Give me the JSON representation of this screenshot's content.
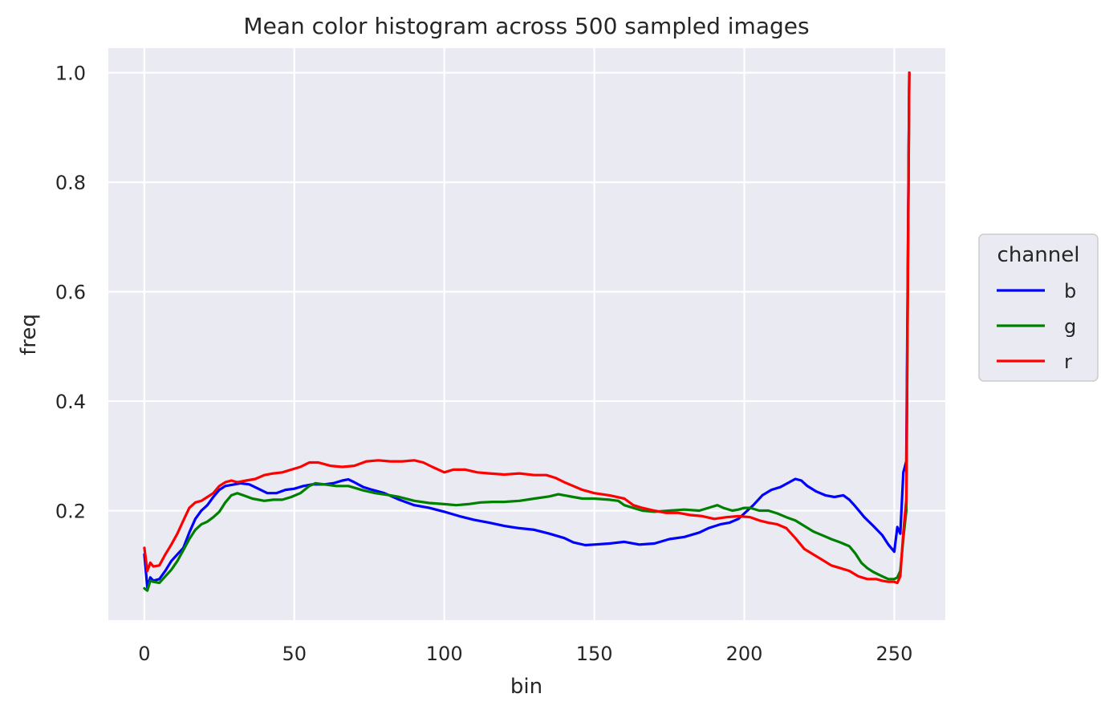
{
  "chart_data": {
    "type": "line",
    "title": "Mean color histogram across 500 sampled images",
    "xlabel": "bin",
    "ylabel": "freq",
    "xlim": [
      -12,
      267
    ],
    "ylim": [
      0.0,
      1.045
    ],
    "xticks": [
      0,
      50,
      100,
      150,
      200,
      250
    ],
    "yticks": [
      0.2,
      0.4,
      0.6,
      0.8,
      1.0
    ],
    "xtick_labels": [
      "0",
      "50",
      "100",
      "150",
      "200",
      "250"
    ],
    "ytick_labels": [
      "0.2",
      "0.4",
      "0.6",
      "0.8",
      "1.0"
    ],
    "grid": true,
    "background": "#eaeaf2",
    "legend": {
      "title": "channel",
      "placement": "right"
    },
    "series": [
      {
        "name": "b",
        "color": "#0000ff",
        "points": [
          [
            0,
            0.12
          ],
          [
            1,
            0.06
          ],
          [
            2,
            0.078
          ],
          [
            3,
            0.072
          ],
          [
            5,
            0.075
          ],
          [
            7,
            0.09
          ],
          [
            9,
            0.108
          ],
          [
            11,
            0.12
          ],
          [
            13,
            0.132
          ],
          [
            15,
            0.16
          ],
          [
            17,
            0.185
          ],
          [
            19,
            0.2
          ],
          [
            21,
            0.21
          ],
          [
            23,
            0.225
          ],
          [
            25,
            0.238
          ],
          [
            27,
            0.245
          ],
          [
            30,
            0.248
          ],
          [
            32,
            0.25
          ],
          [
            35,
            0.248
          ],
          [
            38,
            0.24
          ],
          [
            41,
            0.232
          ],
          [
            44,
            0.232
          ],
          [
            47,
            0.238
          ],
          [
            50,
            0.24
          ],
          [
            53,
            0.245
          ],
          [
            56,
            0.248
          ],
          [
            60,
            0.248
          ],
          [
            63,
            0.25
          ],
          [
            66,
            0.255
          ],
          [
            68,
            0.257
          ],
          [
            70,
            0.252
          ],
          [
            73,
            0.243
          ],
          [
            76,
            0.238
          ],
          [
            80,
            0.232
          ],
          [
            85,
            0.22
          ],
          [
            90,
            0.21
          ],
          [
            95,
            0.205
          ],
          [
            100,
            0.198
          ],
          [
            105,
            0.19
          ],
          [
            110,
            0.183
          ],
          [
            115,
            0.178
          ],
          [
            120,
            0.172
          ],
          [
            125,
            0.168
          ],
          [
            130,
            0.165
          ],
          [
            135,
            0.158
          ],
          [
            140,
            0.15
          ],
          [
            143,
            0.142
          ],
          [
            147,
            0.137
          ],
          [
            150,
            0.138
          ],
          [
            155,
            0.14
          ],
          [
            160,
            0.143
          ],
          [
            165,
            0.138
          ],
          [
            170,
            0.14
          ],
          [
            175,
            0.148
          ],
          [
            180,
            0.152
          ],
          [
            185,
            0.16
          ],
          [
            188,
            0.168
          ],
          [
            192,
            0.175
          ],
          [
            195,
            0.178
          ],
          [
            198,
            0.185
          ],
          [
            200,
            0.195
          ],
          [
            203,
            0.21
          ],
          [
            206,
            0.228
          ],
          [
            209,
            0.238
          ],
          [
            212,
            0.243
          ],
          [
            215,
            0.252
          ],
          [
            217,
            0.258
          ],
          [
            219,
            0.255
          ],
          [
            221,
            0.245
          ],
          [
            224,
            0.235
          ],
          [
            227,
            0.228
          ],
          [
            230,
            0.225
          ],
          [
            233,
            0.228
          ],
          [
            235,
            0.22
          ],
          [
            237,
            0.208
          ],
          [
            240,
            0.188
          ],
          [
            243,
            0.172
          ],
          [
            246,
            0.155
          ],
          [
            248,
            0.138
          ],
          [
            250,
            0.125
          ],
          [
            251,
            0.17
          ],
          [
            252,
            0.158
          ],
          [
            253,
            0.27
          ],
          [
            254,
            0.29
          ],
          [
            255,
            1.0
          ]
        ]
      },
      {
        "name": "g",
        "color": "#008000",
        "points": [
          [
            0,
            0.058
          ],
          [
            1,
            0.054
          ],
          [
            2,
            0.072
          ],
          [
            3,
            0.07
          ],
          [
            5,
            0.068
          ],
          [
            7,
            0.08
          ],
          [
            9,
            0.092
          ],
          [
            11,
            0.108
          ],
          [
            13,
            0.128
          ],
          [
            15,
            0.148
          ],
          [
            17,
            0.165
          ],
          [
            19,
            0.175
          ],
          [
            21,
            0.18
          ],
          [
            23,
            0.188
          ],
          [
            25,
            0.198
          ],
          [
            27,
            0.215
          ],
          [
            29,
            0.228
          ],
          [
            31,
            0.232
          ],
          [
            33,
            0.228
          ],
          [
            36,
            0.222
          ],
          [
            40,
            0.218
          ],
          [
            43,
            0.22
          ],
          [
            46,
            0.22
          ],
          [
            49,
            0.225
          ],
          [
            52,
            0.232
          ],
          [
            55,
            0.245
          ],
          [
            57,
            0.25
          ],
          [
            60,
            0.248
          ],
          [
            64,
            0.245
          ],
          [
            68,
            0.245
          ],
          [
            70,
            0.242
          ],
          [
            73,
            0.237
          ],
          [
            77,
            0.232
          ],
          [
            82,
            0.228
          ],
          [
            85,
            0.225
          ],
          [
            90,
            0.218
          ],
          [
            95,
            0.214
          ],
          [
            100,
            0.212
          ],
          [
            104,
            0.21
          ],
          [
            108,
            0.212
          ],
          [
            112,
            0.215
          ],
          [
            116,
            0.216
          ],
          [
            120,
            0.216
          ],
          [
            125,
            0.218
          ],
          [
            130,
            0.222
          ],
          [
            135,
            0.226
          ],
          [
            138,
            0.23
          ],
          [
            140,
            0.228
          ],
          [
            143,
            0.225
          ],
          [
            146,
            0.222
          ],
          [
            150,
            0.222
          ],
          [
            155,
            0.22
          ],
          [
            158,
            0.218
          ],
          [
            160,
            0.21
          ],
          [
            163,
            0.205
          ],
          [
            166,
            0.2
          ],
          [
            170,
            0.198
          ],
          [
            175,
            0.2
          ],
          [
            180,
            0.202
          ],
          [
            185,
            0.2
          ],
          [
            188,
            0.205
          ],
          [
            191,
            0.21
          ],
          [
            193,
            0.205
          ],
          [
            196,
            0.2
          ],
          [
            198,
            0.202
          ],
          [
            200,
            0.205
          ],
          [
            202,
            0.205
          ],
          [
            205,
            0.2
          ],
          [
            208,
            0.2
          ],
          [
            211,
            0.195
          ],
          [
            214,
            0.188
          ],
          [
            217,
            0.182
          ],
          [
            220,
            0.172
          ],
          [
            223,
            0.162
          ],
          [
            226,
            0.155
          ],
          [
            229,
            0.148
          ],
          [
            232,
            0.142
          ],
          [
            235,
            0.135
          ],
          [
            237,
            0.122
          ],
          [
            239,
            0.105
          ],
          [
            241,
            0.095
          ],
          [
            243,
            0.088
          ],
          [
            246,
            0.08
          ],
          [
            248,
            0.075
          ],
          [
            250,
            0.075
          ],
          [
            251,
            0.078
          ],
          [
            252,
            0.09
          ],
          [
            253,
            0.15
          ],
          [
            254,
            0.2
          ],
          [
            255,
            1.0
          ]
        ]
      },
      {
        "name": "r",
        "color": "#ff0000",
        "points": [
          [
            0,
            0.132
          ],
          [
            1,
            0.09
          ],
          [
            2,
            0.105
          ],
          [
            3,
            0.098
          ],
          [
            5,
            0.1
          ],
          [
            7,
            0.12
          ],
          [
            9,
            0.138
          ],
          [
            11,
            0.158
          ],
          [
            13,
            0.182
          ],
          [
            15,
            0.205
          ],
          [
            17,
            0.215
          ],
          [
            19,
            0.218
          ],
          [
            21,
            0.225
          ],
          [
            23,
            0.232
          ],
          [
            25,
            0.245
          ],
          [
            27,
            0.252
          ],
          [
            29,
            0.255
          ],
          [
            31,
            0.252
          ],
          [
            34,
            0.255
          ],
          [
            37,
            0.258
          ],
          [
            40,
            0.265
          ],
          [
            43,
            0.268
          ],
          [
            46,
            0.27
          ],
          [
            49,
            0.275
          ],
          [
            52,
            0.28
          ],
          [
            55,
            0.288
          ],
          [
            58,
            0.288
          ],
          [
            62,
            0.282
          ],
          [
            66,
            0.28
          ],
          [
            70,
            0.282
          ],
          [
            74,
            0.29
          ],
          [
            78,
            0.292
          ],
          [
            82,
            0.29
          ],
          [
            86,
            0.29
          ],
          [
            90,
            0.292
          ],
          [
            93,
            0.288
          ],
          [
            96,
            0.28
          ],
          [
            100,
            0.27
          ],
          [
            103,
            0.275
          ],
          [
            107,
            0.275
          ],
          [
            111,
            0.27
          ],
          [
            115,
            0.268
          ],
          [
            120,
            0.266
          ],
          [
            125,
            0.268
          ],
          [
            130,
            0.265
          ],
          [
            134,
            0.265
          ],
          [
            137,
            0.26
          ],
          [
            140,
            0.252
          ],
          [
            143,
            0.245
          ],
          [
            146,
            0.238
          ],
          [
            150,
            0.232
          ],
          [
            155,
            0.228
          ],
          [
            160,
            0.222
          ],
          [
            163,
            0.21
          ],
          [
            166,
            0.205
          ],
          [
            170,
            0.2
          ],
          [
            174,
            0.196
          ],
          [
            178,
            0.196
          ],
          [
            182,
            0.192
          ],
          [
            186,
            0.19
          ],
          [
            190,
            0.185
          ],
          [
            194,
            0.188
          ],
          [
            198,
            0.19
          ],
          [
            202,
            0.188
          ],
          [
            205,
            0.182
          ],
          [
            208,
            0.178
          ],
          [
            211,
            0.175
          ],
          [
            214,
            0.168
          ],
          [
            217,
            0.15
          ],
          [
            220,
            0.13
          ],
          [
            223,
            0.12
          ],
          [
            226,
            0.11
          ],
          [
            229,
            0.1
          ],
          [
            232,
            0.095
          ],
          [
            235,
            0.09
          ],
          [
            238,
            0.08
          ],
          [
            241,
            0.075
          ],
          [
            244,
            0.075
          ],
          [
            246,
            0.072
          ],
          [
            248,
            0.07
          ],
          [
            250,
            0.07
          ],
          [
            251,
            0.068
          ],
          [
            252,
            0.08
          ],
          [
            253,
            0.16
          ],
          [
            254,
            0.22
          ],
          [
            255,
            1.0
          ]
        ]
      }
    ]
  }
}
